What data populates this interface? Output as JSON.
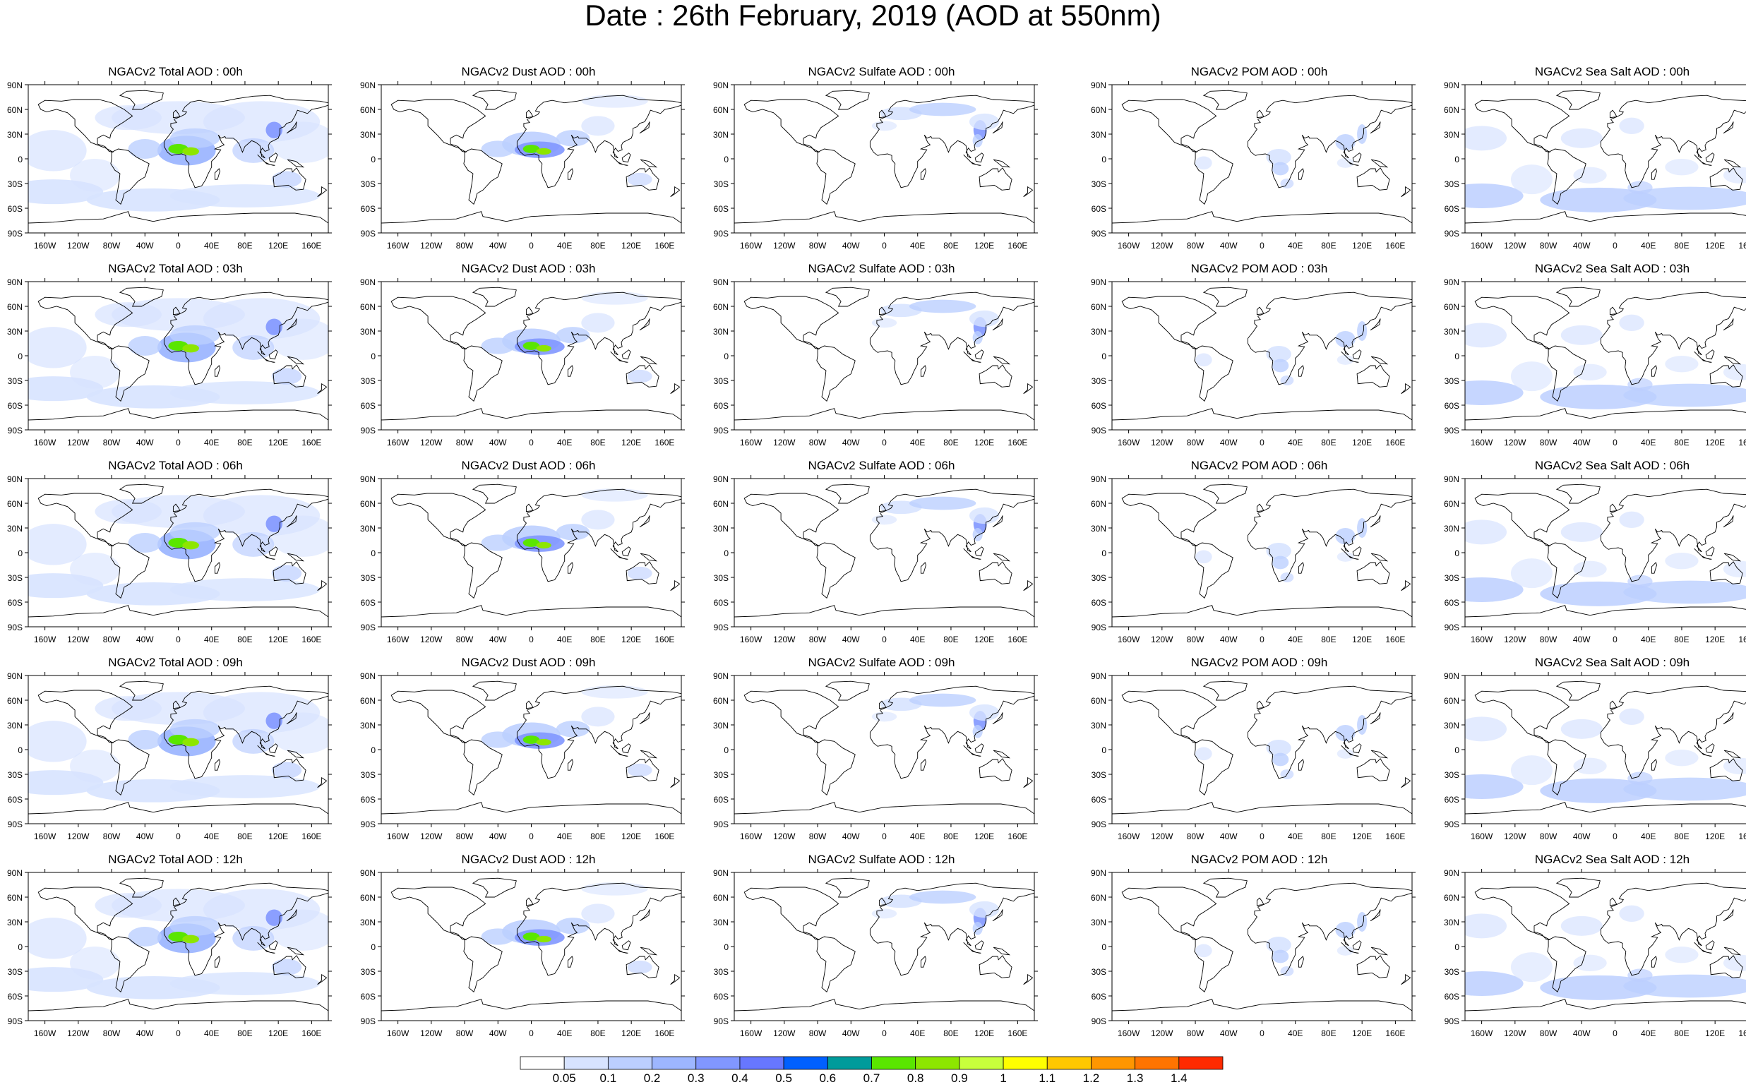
{
  "title": "Date : 26th February, 2019 (AOD at 550nm)",
  "rows": [
    [
      "NGACv2 Total AOD : 00h",
      "NGACv2 Dust AOD : 00h",
      "NGACv2 Sulfate AOD : 00h",
      "NGACv2 POM AOD : 00h",
      "NGACv2 Sea Salt AOD : 00h"
    ],
    [
      "NGACv2 Total AOD : 03h",
      "NGACv2 Dust AOD : 03h",
      "NGACv2 Sulfate AOD : 03h",
      "NGACv2 POM AOD : 03h",
      "NGACv2 Sea Salt AOD : 03h"
    ],
    [
      "NGACv2 Total AOD : 06h",
      "NGACv2 Dust AOD : 06h",
      "NGACv2 Sulfate AOD : 06h",
      "NGACv2 POM AOD : 06h",
      "NGACv2 Sea Salt AOD : 06h"
    ],
    [
      "NGACv2 Total AOD : 09h",
      "NGACv2 Dust AOD : 09h",
      "NGACv2 Sulfate AOD : 09h",
      "NGACv2 POM AOD : 09h",
      "NGACv2 Sea Salt  AOD : 09h"
    ],
    [
      "NGACv2 Total AOD :  12h",
      "NGACv2 Dust AOD : 12h",
      "NGACv2 Sulfate AOD : 12h",
      "NGACv2 POM  AOD : 12h",
      "NGACv2 Sea Salt  AOD : 12h"
    ]
  ],
  "lat_labels": [
    "90N",
    "60N",
    "30N",
    "0",
    "30S",
    "60S",
    "90S"
  ],
  "lon_labels": [
    "160W",
    "120W",
    "80W",
    "40W",
    "0",
    "40E",
    "80E",
    "120E",
    "160E"
  ],
  "colorbar": {
    "labels": [
      "0.05",
      "0.1",
      "0.2",
      "0.3",
      "0.4",
      "0.5",
      "0.6",
      "0.7",
      "0.8",
      "0.9",
      "1",
      "1.1",
      "1.2",
      "1.3",
      "1.4"
    ],
    "colors": [
      "#ffffff",
      "#d7e3ff",
      "#bccfff",
      "#9db6ff",
      "#8197ff",
      "#6777ff",
      "#0060ff",
      "#009b9b",
      "#5ae600",
      "#8de600",
      "#c8ff3c",
      "#ffff00",
      "#ffc800",
      "#ff9600",
      "#ff7400",
      "#ff2a00"
    ]
  },
  "fields": {
    "total": "ocean haze with dust plume over Saharan Africa",
    "dust": "dust plume over North Africa and Arabia",
    "sulfate": "sulfate over East Asia and Europe",
    "pom": "organic matter over Africa and Asia",
    "seasalt": "sea salt over southern ocean"
  }
}
